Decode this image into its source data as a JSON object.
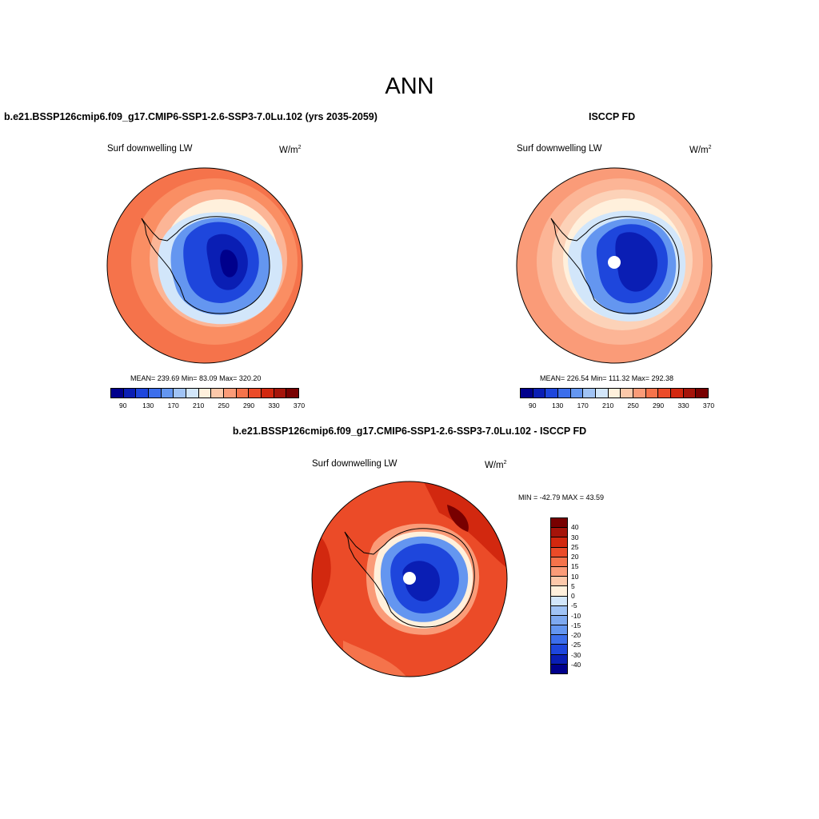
{
  "figure": {
    "title": "ANN"
  },
  "top_left": {
    "title": "b.e21.BSSP126cmip6.f09_g17.CMIP6-SSP1-2.6-SSP3-7.0Lu.102 (yrs 2035-2059)",
    "variable": "Surf downwelling LW",
    "units_base": "W/m",
    "units_exp": "2",
    "stats": "MEAN= 239.69  Min=  83.09  Max= 320.20"
  },
  "top_right": {
    "title": "ISCCP FD",
    "variable": "Surf downwelling LW",
    "units_base": "W/m",
    "units_exp": "2",
    "stats": "MEAN= 226.54  Min= 111.32  Max= 292.38"
  },
  "bottom": {
    "title": "b.e21.BSSP126cmip6.f09_g17.CMIP6-SSP1-2.6-SSP3-7.0Lu.102 - ISCCP FD",
    "variable": "Surf downwelling LW",
    "units_base": "W/m",
    "units_exp": "2",
    "stats": "MIN = -42.79 MAX =  43.59"
  },
  "abs_colorbar": {
    "colors": [
      "#00008c",
      "#0a1eb4",
      "#1e46dc",
      "#3c6eeb",
      "#6496f0",
      "#a0c3f5",
      "#d2e6fa",
      "#fff0dc",
      "#fcc8aa",
      "#fa9b78",
      "#f5734b",
      "#eb4b28",
      "#d2280f",
      "#a5140a",
      "#780000"
    ],
    "tick_labels": [
      "90",
      "130",
      "170",
      "210",
      "250",
      "290",
      "330",
      "370"
    ]
  },
  "diff_colorbar": {
    "colors": [
      "#780000",
      "#a5140a",
      "#d2280f",
      "#eb4b28",
      "#f5734b",
      "#fa9b78",
      "#fcc8aa",
      "#fff0dc",
      "#d2e6fa",
      "#a0c3f5",
      "#7ea9f0",
      "#6496f0",
      "#3c6eeb",
      "#1e46dc",
      "#0a1eb4",
      "#00008c"
    ],
    "tick_labels": [
      "40",
      "30",
      "25",
      "20",
      "15",
      "10",
      "5",
      "0",
      "-5",
      "-10",
      "-15",
      "-20",
      "-25",
      "-30",
      "-40"
    ]
  }
}
